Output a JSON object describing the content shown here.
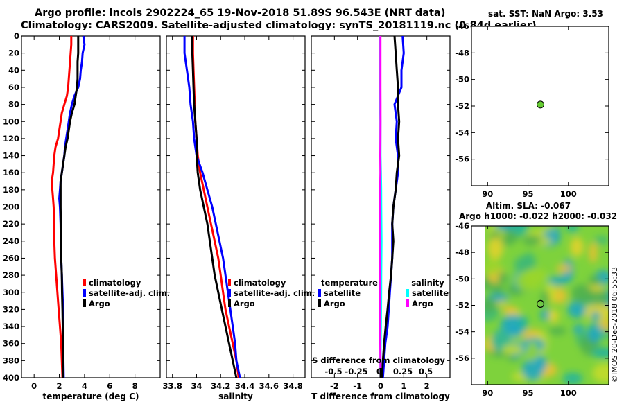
{
  "title": {
    "line1": "Argo profile: incois 2902224_65 19-Nov-2018 51.89S 96.543E (NRT data)",
    "line2": "Climatology: CARS2009. Satellite-adjusted climatology: synTS_20181119.nc (0.84d earlier)"
  },
  "colors": {
    "climatology": "#ff0000",
    "satellite": "#0000ff",
    "argo": "#000000",
    "sal_satellite": "#00ffff",
    "sal_climatology": "#ff00ff",
    "sst_dot": "#66cc33"
  },
  "depth_ticks": [
    "0",
    "20",
    "40",
    "60",
    "80",
    "100",
    "120",
    "140",
    "160",
    "180",
    "200",
    "220",
    "240",
    "260",
    "280",
    "300",
    "320",
    "340",
    "360",
    "380",
    "400"
  ],
  "chart_data": [
    {
      "type": "line",
      "name": "temperature",
      "xlabel": "temperature (deg C)",
      "ylabel": "",
      "xlim": [
        -1,
        10
      ],
      "ylim": [
        400,
        0
      ],
      "xtick_values": [
        0,
        2,
        4,
        6,
        8
      ],
      "xtick_labels": [
        "0",
        "2",
        "4",
        "6",
        "8"
      ],
      "depth": [
        0,
        10,
        20,
        30,
        40,
        50,
        60,
        70,
        80,
        90,
        100,
        110,
        120,
        130,
        140,
        150,
        160,
        170,
        180,
        190,
        200,
        220,
        240,
        260,
        280,
        300,
        320,
        340,
        360,
        380,
        400
      ],
      "series": [
        {
          "name": "climatology",
          "values": [
            2.95,
            2.95,
            2.9,
            2.85,
            2.8,
            2.75,
            2.7,
            2.6,
            2.4,
            2.2,
            2.1,
            2.0,
            1.9,
            1.7,
            1.6,
            1.55,
            1.5,
            1.4,
            1.45,
            1.5,
            1.55,
            1.6,
            1.6,
            1.65,
            1.75,
            1.85,
            1.95,
            2.05,
            2.15,
            2.2,
            2.25
          ]
        },
        {
          "name": "satellite-adj. clim.",
          "values": [
            3.9,
            4.0,
            3.85,
            3.8,
            3.7,
            3.65,
            3.5,
            3.2,
            3.0,
            2.85,
            2.75,
            2.65,
            2.55,
            2.45,
            2.4,
            2.3,
            2.2,
            2.1,
            2.05,
            2.0,
            2.05,
            2.1,
            2.12,
            2.15,
            2.2,
            2.25,
            2.3,
            2.3,
            2.32,
            2.33,
            2.35
          ]
        },
        {
          "name": "Argo",
          "values": [
            3.5,
            3.5,
            3.5,
            3.45,
            3.45,
            3.45,
            3.4,
            3.3,
            3.2,
            3.0,
            2.85,
            2.75,
            2.65,
            2.5,
            2.4,
            2.3,
            2.2,
            2.1,
            2.1,
            2.1,
            2.1,
            2.12,
            2.15,
            2.15,
            2.2,
            2.22,
            2.25,
            2.27,
            2.28,
            2.3,
            2.3
          ]
        }
      ],
      "legend": [
        "climatology",
        "satellite-adj. clim.",
        "Argo"
      ],
      "legend_position": "lower-right"
    },
    {
      "type": "line",
      "name": "salinity",
      "xlabel": "salinity",
      "xlim": [
        33.75,
        34.9
      ],
      "ylim": [
        400,
        0
      ],
      "xtick_values": [
        33.8,
        34,
        34.2,
        34.4,
        34.6,
        34.8
      ],
      "xtick_labels": [
        "33.8",
        "34",
        "34.2",
        "34.4",
        "34.6",
        "34.8"
      ],
      "depth": [
        0,
        20,
        40,
        60,
        80,
        100,
        120,
        140,
        160,
        180,
        200,
        220,
        240,
        260,
        280,
        300,
        320,
        340,
        360,
        380,
        400
      ],
      "series": [
        {
          "name": "climatology",
          "values": [
            33.97,
            33.97,
            33.975,
            33.98,
            33.985,
            33.99,
            34.0,
            34.01,
            34.03,
            34.06,
            34.09,
            34.12,
            34.15,
            34.18,
            34.2,
            34.22,
            34.24,
            34.27,
            34.3,
            34.33,
            34.35
          ]
        },
        {
          "name": "satellite-adj. clim.",
          "values": [
            33.9,
            33.9,
            33.92,
            33.94,
            33.95,
            33.97,
            33.98,
            34.0,
            34.05,
            34.09,
            34.13,
            34.16,
            34.19,
            34.22,
            34.24,
            34.26,
            34.28,
            34.3,
            34.32,
            34.33,
            34.36
          ]
        },
        {
          "name": "Argo",
          "values": [
            33.96,
            33.965,
            33.97,
            33.975,
            33.98,
            33.99,
            34.0,
            34.0,
            34.01,
            34.03,
            34.06,
            34.09,
            34.11,
            34.13,
            34.15,
            34.18,
            34.21,
            34.24,
            34.27,
            34.3,
            34.33
          ]
        }
      ],
      "legend": [
        "climatology",
        "satellite-adj. clim.",
        "Argo"
      ],
      "legend_position": "lower-right"
    },
    {
      "type": "line",
      "name": "differences from climatology",
      "xlabel": "T difference from climatology",
      "xlabel_top": "S difference from climatology",
      "xlim": [
        -3,
        3
      ],
      "ylim": [
        400,
        0
      ],
      "xtick_values": [
        -2,
        -1,
        0,
        1,
        2
      ],
      "xtick_labels": [
        "-2",
        "-1",
        "0",
        "1",
        "2"
      ],
      "s_tick_values": [
        -0.5,
        -0.25,
        0,
        0.25,
        0.5
      ],
      "s_tick_labels": [
        "-0.5",
        "-0.25",
        "0",
        "0.25",
        "0.5"
      ],
      "depth": [
        0,
        20,
        40,
        60,
        80,
        100,
        120,
        140,
        160,
        180,
        200,
        220,
        240,
        260,
        280,
        300,
        320,
        340,
        360,
        380,
        400
      ],
      "series": [
        {
          "name": "temperature satellite",
          "values": [
            0.95,
            1.0,
            0.9,
            0.9,
            0.6,
            0.7,
            0.65,
            0.75,
            0.75,
            0.65,
            0.55,
            0.5,
            0.5,
            0.5,
            0.45,
            0.4,
            0.35,
            0.3,
            0.2,
            0.15,
            0.1
          ]
        },
        {
          "name": "temperature Argo",
          "values": [
            0.6,
            0.65,
            0.7,
            0.75,
            0.75,
            0.8,
            0.75,
            0.8,
            0.7,
            0.65,
            0.55,
            0.5,
            0.55,
            0.5,
            0.45,
            0.37,
            0.3,
            0.22,
            0.15,
            0.1,
            0.05
          ]
        },
        {
          "name": "salinity satellite",
          "values": [
            -0.04,
            -0.04,
            -0.035,
            -0.03,
            -0.02,
            -0.01,
            -0.01,
            -0.005,
            0.01,
            0.02,
            0.025,
            0.03,
            0.035,
            0.03,
            0.025,
            0.02,
            0.015,
            0.01,
            0.0,
            -0.01,
            0.0
          ]
        },
        {
          "name": "salinity climatology",
          "values": [
            -0.01,
            -0.008,
            -0.01,
            -0.01,
            -0.005,
            -0.005,
            -0.01,
            -0.015,
            -0.01,
            -0.02,
            -0.025,
            -0.025,
            -0.02,
            -0.02,
            -0.025,
            -0.025,
            -0.02,
            -0.02,
            -0.015,
            -0.01,
            0.0
          ]
        }
      ],
      "legend_temperature_title": "temperature",
      "legend_salinity_title": "salinity",
      "legend_temperature": [
        "satellite",
        "Argo"
      ],
      "legend_salinity": [
        "satellite",
        "Argo"
      ],
      "legend_position": "lower-center"
    },
    {
      "type": "scatter",
      "name": "satellite SST map",
      "title": "sat. SST: NaN Argo: 3.53",
      "xlim": [
        88,
        105
      ],
      "ylim": [
        -58,
        -46
      ],
      "xtick_values": [
        90,
        95,
        100
      ],
      "xtick_labels": [
        "90",
        "95",
        "100"
      ],
      "ytick_values": [
        -46,
        -48,
        -50,
        -52,
        -54,
        -56
      ],
      "ytick_labels": [
        "-46",
        "-48",
        "-50",
        "-52",
        "-54",
        "-56"
      ],
      "points": [
        {
          "lon": 96.543,
          "lat": -51.89
        }
      ]
    },
    {
      "type": "heatmap",
      "name": "altimetry SLA map",
      "title_line1": "Altim. SLA: -0.067",
      "title_line2": "Argo h1000: -0.022 h2000: -0.032",
      "xlim": [
        88,
        105
      ],
      "ylim": [
        -58,
        -46
      ],
      "xtick_values": [
        90,
        95,
        100
      ],
      "xtick_labels": [
        "90",
        "95",
        "100"
      ],
      "ytick_values": [
        -46,
        -48,
        -50,
        -52,
        -54,
        -56
      ],
      "ytick_labels": [
        "-46",
        "-48",
        "-50",
        "-52",
        "-54",
        "-56"
      ],
      "marker": {
        "lon": 96.543,
        "lat": -51.89
      }
    }
  ],
  "credit": "©IMOS 20-Dec-2018 06:55:33"
}
